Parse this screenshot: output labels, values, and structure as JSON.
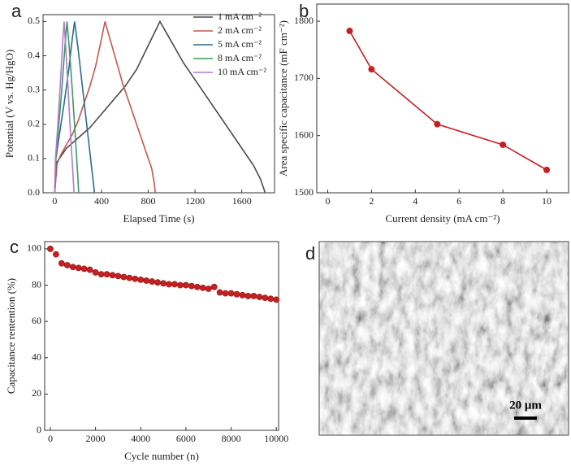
{
  "chart_data": [
    {
      "type": "line",
      "panel_label": "a",
      "x_label": "Elapsed Time (s)",
      "y_label": "Potential (V vs. Hg/HgO)",
      "xlim": [
        -100,
        1880
      ],
      "xticks": [
        0,
        400,
        800,
        1200,
        1600
      ],
      "ylim": [
        0,
        0.52
      ],
      "yticks": [
        {
          "value": 0,
          "label": "0.0"
        },
        0.1,
        0.2,
        0.3,
        0.4,
        0.5
      ],
      "legend": "top-right",
      "series": [
        {
          "name": "1 mA cm⁻²",
          "color": "#4a4a4a",
          "x": [
            0,
            20,
            100,
            200,
            300,
            400,
            500,
            600,
            700,
            800,
            900,
            1000,
            1100,
            1200,
            1300,
            1400,
            1500,
            1600,
            1700,
            1760,
            1800
          ],
          "values": [
            0,
            0.09,
            0.13,
            0.16,
            0.19,
            0.23,
            0.27,
            0.31,
            0.36,
            0.43,
            0.5,
            0.44,
            0.38,
            0.33,
            0.28,
            0.23,
            0.18,
            0.13,
            0.08,
            0.04,
            0
          ]
        },
        {
          "name": "2 mA cm⁻²",
          "color": "#c8554f",
          "x": [
            0,
            15,
            50,
            100,
            150,
            200,
            250,
            300,
            350,
            400,
            430,
            480,
            530,
            580,
            630,
            680,
            730,
            780,
            830,
            850,
            860
          ],
          "values": [
            0,
            0.08,
            0.11,
            0.14,
            0.17,
            0.21,
            0.26,
            0.31,
            0.37,
            0.45,
            0.5,
            0.44,
            0.38,
            0.32,
            0.27,
            0.22,
            0.17,
            0.12,
            0.07,
            0.03,
            0
          ]
        },
        {
          "name": "5 mA cm⁻²",
          "color": "#2c6c8c",
          "x": [
            0,
            10,
            40,
            80,
            120,
            150,
            170,
            200,
            230,
            260,
            290,
            320,
            340
          ],
          "values": [
            0,
            0.1,
            0.17,
            0.26,
            0.36,
            0.45,
            0.5,
            0.42,
            0.33,
            0.24,
            0.15,
            0.06,
            0
          ]
        },
        {
          "name": "8 mA cm⁻²",
          "color": "#3c9a5c",
          "x": [
            0,
            8,
            30,
            60,
            90,
            105,
            125,
            150,
            175,
            195,
            205
          ],
          "values": [
            0,
            0.1,
            0.18,
            0.3,
            0.44,
            0.5,
            0.42,
            0.3,
            0.17,
            0.06,
            0
          ]
        },
        {
          "name": "10 mA cm⁻²",
          "color": "#b27ad0",
          "x": [
            0,
            6,
            25,
            50,
            70,
            80,
            95,
            115,
            135,
            155,
            165
          ],
          "values": [
            0,
            0.1,
            0.19,
            0.33,
            0.45,
            0.5,
            0.42,
            0.3,
            0.17,
            0.06,
            0
          ]
        }
      ]
    },
    {
      "type": "line",
      "markers": true,
      "panel_label": "b",
      "x_label": "Current density (mA cm⁻²)",
      "y_label": "Area specific capacitance (mF cm⁻²)",
      "xlim": [
        -0.5,
        11
      ],
      "xticks": [
        0,
        2,
        4,
        6,
        8,
        10
      ],
      "ylim": [
        1500,
        1830
      ],
      "yticks": [
        1500,
        1600,
        1700,
        1800
      ],
      "color": "#c62020",
      "x": [
        1,
        2,
        5,
        8,
        10
      ],
      "values": [
        1783,
        1716,
        1620,
        1584,
        1540
      ]
    },
    {
      "type": "scatter",
      "panel_label": "c",
      "x_label": "Cycle number (n)",
      "y_label": "Capacitance rentention (%)",
      "xlim": [
        -250,
        10100
      ],
      "xticks": [
        0,
        2000,
        4000,
        6000,
        8000,
        10000
      ],
      "ylim": [
        0,
        104
      ],
      "yticks": [
        0,
        20,
        40,
        60,
        80,
        100
      ],
      "color": "#c62020",
      "x": [
        0,
        250,
        500,
        750,
        1000,
        1250,
        1500,
        1750,
        2000,
        2250,
        2500,
        2750,
        3000,
        3250,
        3500,
        3750,
        4000,
        4250,
        4500,
        4750,
        5000,
        5250,
        5500,
        5750,
        6000,
        6250,
        6500,
        6750,
        7000,
        7250,
        7500,
        7750,
        8000,
        8250,
        8500,
        8750,
        9000,
        9250,
        9500,
        9750,
        10000
      ],
      "values": [
        100,
        97,
        92,
        91,
        90,
        89.5,
        89,
        88.5,
        87,
        86,
        86,
        85.5,
        85,
        84.5,
        84,
        83.5,
        83,
        82.5,
        82,
        81.5,
        81,
        80.5,
        80.5,
        80,
        80,
        79.5,
        79,
        78.5,
        78,
        79,
        76,
        75.5,
        75.5,
        75,
        74.5,
        74,
        74,
        73.5,
        73,
        72.5,
        72
      ]
    }
  ],
  "image_panel": {
    "panel_label": "d",
    "scale_bar": "20 μm"
  }
}
